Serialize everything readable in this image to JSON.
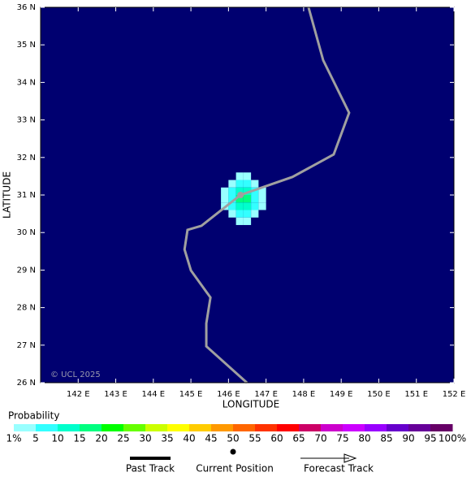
{
  "chart_data": {
    "type": "track_map",
    "xlabel": "LONGITUDE",
    "ylabel": "LATITUDE",
    "credit": "© UCL 2025",
    "xlim": [
      141,
      152
    ],
    "ylim": [
      26,
      36
    ],
    "xticks": [
      {
        "value": 142,
        "label": "142 E"
      },
      {
        "value": 143,
        "label": "143 E"
      },
      {
        "value": 144,
        "label": "144 E"
      },
      {
        "value": 145,
        "label": "145 E"
      },
      {
        "value": 146,
        "label": "146 E"
      },
      {
        "value": 147,
        "label": "147 E"
      },
      {
        "value": 148,
        "label": "148 E"
      },
      {
        "value": 149,
        "label": "149 E"
      },
      {
        "value": 150,
        "label": "150 E"
      },
      {
        "value": 151,
        "label": "151 E"
      },
      {
        "value": 152,
        "label": "152 E"
      }
    ],
    "yticks": [
      {
        "value": 26,
        "label": "26 N"
      },
      {
        "value": 27,
        "label": "27 N"
      },
      {
        "value": 28,
        "label": "28 N"
      },
      {
        "value": 29,
        "label": "29 N"
      },
      {
        "value": 30,
        "label": "30 N"
      },
      {
        "value": 31,
        "label": "31 N"
      },
      {
        "value": 32,
        "label": "32 N"
      },
      {
        "value": 33,
        "label": "33 N"
      },
      {
        "value": 34,
        "label": "34 N"
      },
      {
        "value": 35,
        "label": "35 N"
      },
      {
        "value": 36,
        "label": "36 N"
      }
    ],
    "background": "#000070",
    "track_color": "#a0a0a0",
    "track": {
      "lon": [
        148.13,
        148.52,
        149.21,
        148.8,
        147.7,
        146.32,
        145.28,
        144.91,
        144.83,
        145.0,
        145.52,
        145.41,
        145.41,
        146.49
      ],
      "lat": [
        36.0,
        34.59,
        33.19,
        32.08,
        31.48,
        31.0,
        30.18,
        30.07,
        29.55,
        28.99,
        28.27,
        27.58,
        26.97,
        26.0
      ]
    },
    "current_position": {
      "lon": 146.32,
      "lat": 31.0
    },
    "cell_size": 0.2,
    "cell_lon": [
      145.9,
      146.1,
      146.3,
      146.5,
      146.7,
      146.9
    ],
    "cell_lat": [
      31.5,
      31.3,
      31.1,
      30.9,
      30.7,
      30.5,
      30.3
    ],
    "probability": [
      [
        null,
        null,
        3,
        3,
        null,
        null
      ],
      [
        null,
        3,
        7,
        7,
        3,
        null
      ],
      [
        3,
        7,
        12,
        12,
        7,
        3
      ],
      [
        3,
        8,
        17,
        17,
        8,
        3
      ],
      [
        3,
        7,
        12,
        14,
        7,
        3
      ],
      [
        null,
        3,
        7,
        7,
        3,
        null
      ],
      [
        null,
        null,
        3,
        3,
        null,
        null
      ]
    ],
    "scale_title": "Probability",
    "scale_levels": [
      {
        "value": 1,
        "label": "1%"
      },
      5,
      10,
      15,
      20,
      25,
      30,
      35,
      40,
      45,
      50,
      55,
      60,
      65,
      70,
      75,
      80,
      85,
      90,
      95,
      {
        "value": 100,
        "label": "100%"
      }
    ],
    "scale_colors": [
      "#99ffff",
      "#33ffff",
      "#00ffcc",
      "#00ff80",
      "#00ff00",
      "#66ff00",
      "#ccff00",
      "#ffff00",
      "#ffcc00",
      "#ff9900",
      "#ff6600",
      "#ff3300",
      "#ff0000",
      "#cc0066",
      "#cc00cc",
      "#cc00ff",
      "#9900ff",
      "#6600cc",
      "#660099",
      "#660066"
    ],
    "legend": [
      "Past Track",
      "Current Position",
      "Forecast Track"
    ]
  }
}
